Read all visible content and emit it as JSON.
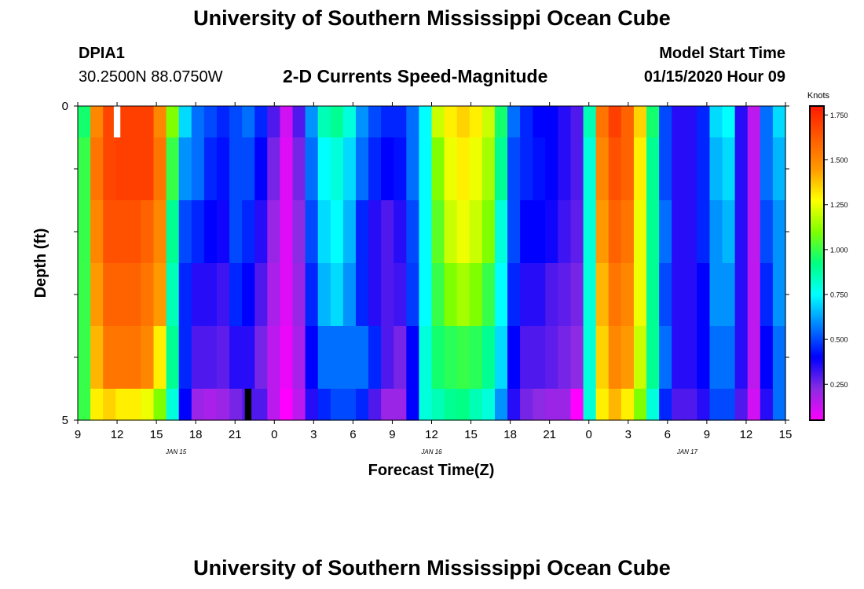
{
  "header": {
    "title": "University of Southern Mississippi Ocean Cube",
    "station": "DPIA1",
    "coords": "30.2500N 88.0750W",
    "plot_title": "2-D Currents Speed-Magnitude",
    "model_start_label": "Model Start Time",
    "model_start_value": "01/15/2020 Hour 09"
  },
  "footer": {
    "title": "University of Southern Mississippi Ocean Cube"
  },
  "chart_data": {
    "type": "heatmap",
    "title": "2-D Currents Speed-Magnitude",
    "xlabel": "Forecast Time(Z)",
    "ylabel": "Depth (ft)",
    "colorbar_label": "Knots",
    "colorbar_range": [
      0.05,
      1.8
    ],
    "colorbar_ticks": [
      "1.750",
      "1.500",
      "1.250",
      "1.000",
      "0.750",
      "0.500",
      "0.250"
    ],
    "colorbar_tick_values": [
      1.75,
      1.5,
      1.25,
      1.0,
      0.75,
      0.5,
      0.25
    ],
    "x_ticks": [
      "9",
      "12",
      "15",
      "18",
      "21",
      "0",
      "3",
      "6",
      "9",
      "12",
      "15",
      "18",
      "21",
      "0",
      "3",
      "6",
      "9",
      "12",
      "15"
    ],
    "x_tick_hours": [
      0,
      3,
      6,
      9,
      12,
      15,
      18,
      21,
      24,
      27,
      30,
      33,
      36,
      39,
      42,
      45,
      48,
      51,
      54
    ],
    "x_range_hours": [
      0,
      54
    ],
    "date_labels": [
      "JAN 15",
      "JAN 16",
      "JAN 17"
    ],
    "date_label_hours": [
      7.5,
      27,
      46.5
    ],
    "y_tick_labels": [
      "0",
      "5"
    ],
    "y_range": [
      0,
      5
    ],
    "depth_levels": [
      0.25,
      1.0,
      2.0,
      3.0,
      4.0,
      4.75
    ],
    "depth_edges": [
      0,
      0.5,
      1.5,
      2.5,
      3.5,
      4.5,
      5
    ],
    "speed_grid": [
      [
        0.95,
        1.5,
        1.68,
        1.7,
        1.7,
        1.7,
        1.5,
        1.1,
        0.7,
        0.55,
        0.5,
        0.45,
        0.5,
        0.55,
        0.45,
        0.3,
        0.12,
        0.3,
        0.6,
        0.85,
        0.9,
        0.8,
        0.6,
        0.5,
        0.45,
        0.45,
        0.55,
        0.75,
        1.2,
        1.3,
        1.35,
        1.3,
        1.2,
        0.95,
        0.55,
        0.45,
        0.4,
        0.4,
        0.35,
        0.3,
        0.85,
        1.55,
        1.7,
        1.6,
        1.35,
        0.95,
        0.5,
        0.35,
        0.35,
        0.45,
        0.7,
        0.75,
        0.35,
        0.15,
        0.55,
        0.7
      ],
      [
        1.0,
        1.55,
        1.68,
        1.7,
        1.7,
        1.7,
        1.55,
        1.0,
        0.6,
        0.55,
        0.45,
        0.42,
        0.5,
        0.5,
        0.4,
        0.25,
        0.1,
        0.25,
        0.55,
        0.75,
        0.8,
        0.7,
        0.55,
        0.45,
        0.4,
        0.42,
        0.55,
        0.75,
        1.1,
        1.25,
        1.3,
        1.25,
        1.15,
        0.9,
        0.5,
        0.45,
        0.42,
        0.4,
        0.35,
        0.3,
        0.8,
        1.5,
        1.65,
        1.6,
        1.3,
        0.9,
        0.5,
        0.35,
        0.35,
        0.45,
        0.65,
        0.7,
        0.35,
        0.15,
        0.55,
        0.65
      ],
      [
        1.0,
        1.5,
        1.65,
        1.65,
        1.65,
        1.6,
        1.5,
        0.9,
        0.5,
        0.45,
        0.4,
        0.38,
        0.5,
        0.45,
        0.35,
        0.2,
        0.1,
        0.22,
        0.5,
        0.7,
        0.75,
        0.65,
        0.45,
        0.35,
        0.3,
        0.35,
        0.5,
        0.75,
        1.05,
        1.2,
        1.25,
        1.2,
        1.1,
        0.8,
        0.5,
        0.4,
        0.4,
        0.38,
        0.32,
        0.28,
        0.8,
        1.45,
        1.6,
        1.55,
        1.25,
        0.9,
        0.55,
        0.35,
        0.35,
        0.45,
        0.6,
        0.65,
        0.35,
        0.15,
        0.5,
        0.6
      ],
      [
        1.0,
        1.45,
        1.6,
        1.6,
        1.6,
        1.55,
        1.45,
        0.85,
        0.45,
        0.35,
        0.35,
        0.32,
        0.45,
        0.4,
        0.3,
        0.18,
        0.1,
        0.2,
        0.45,
        0.65,
        0.7,
        0.6,
        0.45,
        0.35,
        0.3,
        0.32,
        0.48,
        0.75,
        1.0,
        1.1,
        1.15,
        1.1,
        1.0,
        0.75,
        0.45,
        0.35,
        0.35,
        0.3,
        0.28,
        0.25,
        0.8,
        1.4,
        1.55,
        1.5,
        1.25,
        0.9,
        0.5,
        0.35,
        0.35,
        0.4,
        0.6,
        0.6,
        0.35,
        0.15,
        0.45,
        0.6
      ],
      [
        1.0,
        1.4,
        1.55,
        1.55,
        1.55,
        1.5,
        1.3,
        0.9,
        0.45,
        0.3,
        0.3,
        0.28,
        0.35,
        0.35,
        0.25,
        0.15,
        0.08,
        0.18,
        0.4,
        0.55,
        0.55,
        0.55,
        0.55,
        0.45,
        0.3,
        0.25,
        0.4,
        0.8,
        0.95,
        0.98,
        1.0,
        0.98,
        0.9,
        0.7,
        0.4,
        0.3,
        0.3,
        0.28,
        0.25,
        0.22,
        0.8,
        1.35,
        1.5,
        1.45,
        1.2,
        0.9,
        0.55,
        0.35,
        0.35,
        0.4,
        0.55,
        0.55,
        0.35,
        0.15,
        0.4,
        0.55
      ],
      [
        1.0,
        1.3,
        1.35,
        1.3,
        1.3,
        1.25,
        1.1,
        0.8,
        0.4,
        0.2,
        0.18,
        0.2,
        0.25,
        0.3,
        0.3,
        0.15,
        0.05,
        0.15,
        0.35,
        0.45,
        0.5,
        0.5,
        0.45,
        0.3,
        0.2,
        0.2,
        0.4,
        0.8,
        0.85,
        0.9,
        0.92,
        0.85,
        0.8,
        0.6,
        0.35,
        0.25,
        0.22,
        0.2,
        0.2,
        0.05,
        0.8,
        1.3,
        1.4,
        1.3,
        1.1,
        0.8,
        0.45,
        0.3,
        0.3,
        0.35,
        0.5,
        0.5,
        0.3,
        0.12,
        0.35,
        0.55
      ]
    ],
    "masked_cells": [
      {
        "depth_row": 0,
        "hour": 3,
        "color": "#ffffff"
      },
      {
        "depth_row": 5,
        "hour": 13,
        "color": "#000000"
      }
    ],
    "colors": {
      "scale": [
        "#ff00ff",
        "#8a2be2",
        "#0000ff",
        "#0080ff",
        "#00ffff",
        "#00ff80",
        "#80ff00",
        "#ffff00",
        "#ff9900",
        "#ff5a00",
        "#ff1a00"
      ]
    }
  }
}
